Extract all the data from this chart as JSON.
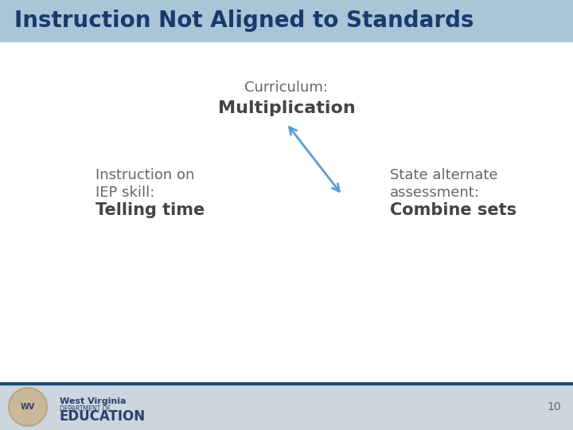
{
  "title": "Instruction Not Aligned to Standards",
  "title_bg": "#aac4d8",
  "title_text_color": "#1a3a6b",
  "bg_color": "#ffffff",
  "footer_bg": "#cdd5de",
  "footer_line_color": "#1a4f7a",
  "curriculum_label": "Curriculum:",
  "curriculum_value": "Multiplication",
  "left_line1": "Instruction on",
  "left_line2": "IEP skill:",
  "left_line3": "Telling time",
  "right_line1": "State alternate",
  "right_line2": "assessment:",
  "right_line3": "Combine sets",
  "arrow_color": "#5b9bd5",
  "text_color_normal": "#666666",
  "text_color_bold": "#444444",
  "page_number": "10",
  "title_fontsize": 20,
  "body_fontsize": 12,
  "bold_fontsize": 13
}
